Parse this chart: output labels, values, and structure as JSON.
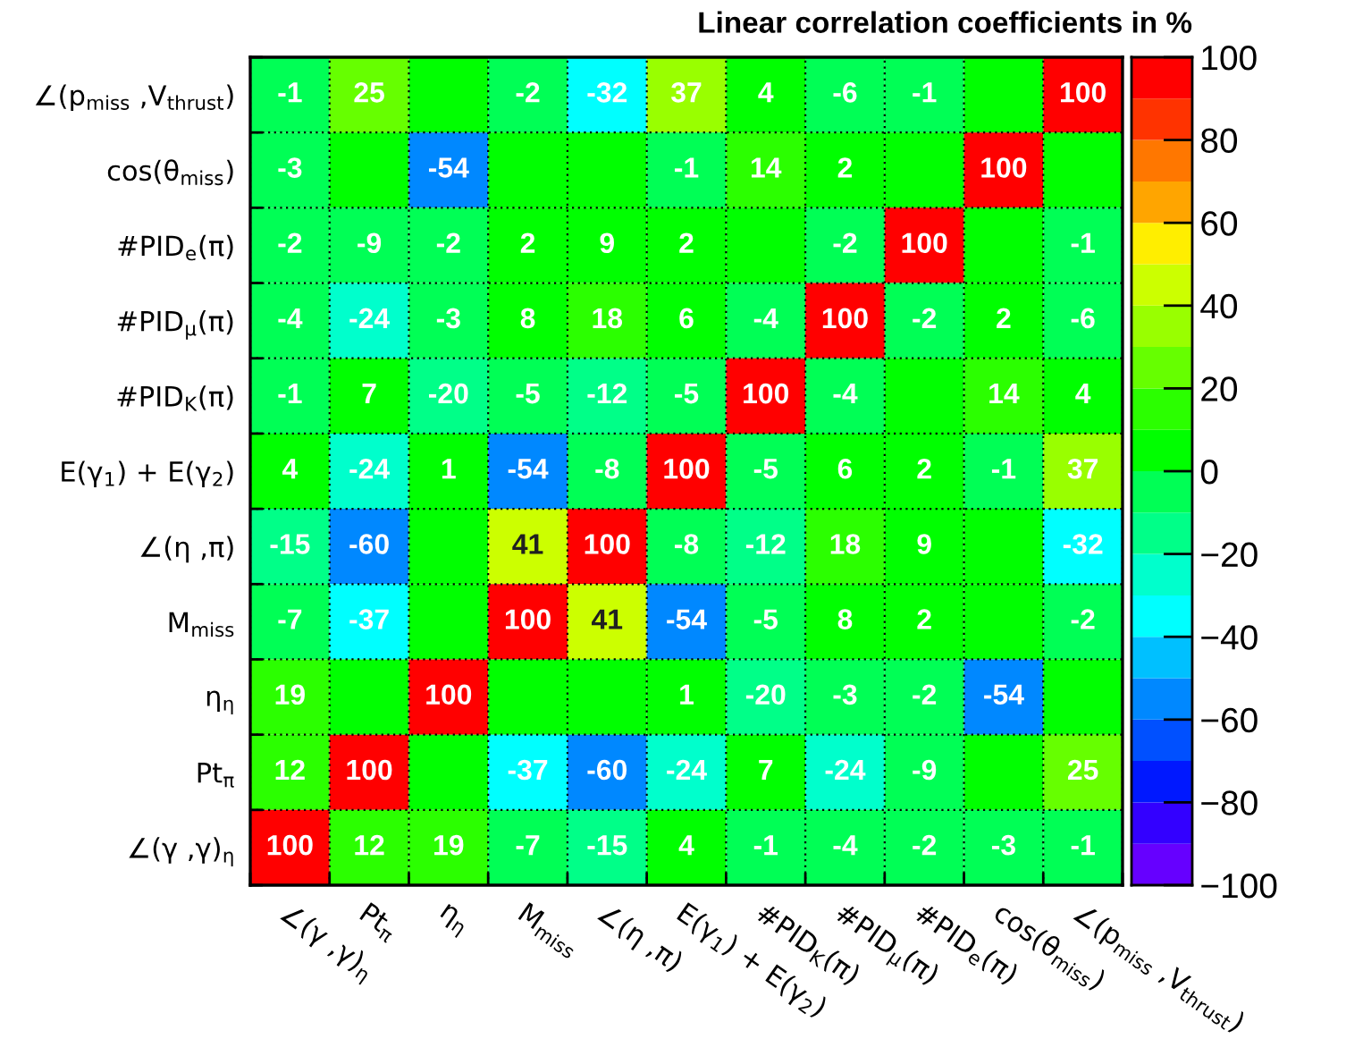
{
  "chart_data": {
    "type": "heatmap",
    "title": "Linear correlation coefficients in %",
    "categories": [
      "∠(γ ,γ)$_{η}$",
      "Pt$_{π}$",
      "η$_{η}$",
      "M$_{miss}$",
      "∠(η ,π)",
      "E(γ$_{1}$) + E(γ$_{2}$)",
      "#PID$_{K}$(π)",
      "#PID$_{μ}$(π)",
      "#PID$_{e}$(π)",
      "cos(θ$_{miss}$)",
      "∠(p$_{miss}$ ,V$_{thrust}$)"
    ],
    "y_categories": [
      "∠(p$_{miss}$ ,V$_{thrust}$)",
      "cos(θ$_{miss}$)",
      "#PID$_{e}$(π)",
      "#PID$_{μ}$(π)",
      "#PID$_{K}$(π)",
      "E(γ$_{1}$) + E(γ$_{2}$)",
      "∠(η ,π)",
      "M$_{miss}$",
      "η$_{η}$",
      "Pt$_{π}$",
      "∠(γ ,γ)$_{η}$"
    ],
    "cells": [
      [
        -1,
        25,
        0,
        -2,
        -32,
        37,
        4,
        -6,
        -1,
        0,
        100
      ],
      [
        -3,
        0,
        -54,
        0,
        0,
        -1,
        14,
        2,
        0,
        100,
        0
      ],
      [
        -2,
        -9,
        -2,
        2,
        9,
        2,
        0,
        -2,
        100,
        0,
        -1
      ],
      [
        -4,
        -24,
        -3,
        8,
        18,
        6,
        -4,
        100,
        -2,
        2,
        -6
      ],
      [
        -1,
        7,
        -20,
        -5,
        -12,
        -5,
        100,
        -4,
        0,
        14,
        4
      ],
      [
        4,
        -24,
        1,
        -54,
        -8,
        100,
        -5,
        6,
        2,
        -1,
        37
      ],
      [
        -15,
        -60,
        0,
        41,
        100,
        -8,
        -12,
        18,
        9,
        0,
        -32
      ],
      [
        -7,
        -37,
        0,
        100,
        41,
        -54,
        -5,
        8,
        2,
        0,
        -2
      ],
      [
        19,
        0,
        100,
        0,
        0,
        1,
        -20,
        -3,
        -2,
        -54,
        0
      ],
      [
        12,
        100,
        0,
        -37,
        -60,
        -24,
        7,
        -24,
        -9,
        0,
        25
      ],
      [
        100,
        12,
        19,
        -7,
        -15,
        4,
        -1,
        -4,
        -2,
        -3,
        -1
      ]
    ],
    "cell_labels": [
      [
        "-1",
        "25",
        null,
        "-2",
        "-32",
        "37",
        "4",
        "-6",
        "-1",
        null,
        "100"
      ],
      [
        "-3",
        null,
        "-54",
        null,
        null,
        "-1",
        "14",
        "2",
        null,
        "100",
        null
      ],
      [
        "-2",
        "-9",
        "-2",
        "2",
        "9",
        "2",
        null,
        "-2",
        "100",
        null,
        "-1"
      ],
      [
        "-4",
        "-24",
        "-3",
        "8",
        "18",
        "6",
        "-4",
        "100",
        "-2",
        "2",
        "-6"
      ],
      [
        "-1",
        "7",
        "-20",
        "-5",
        "-12",
        "-5",
        "100",
        "-4",
        null,
        "14",
        "4"
      ],
      [
        "4",
        "-24",
        "1",
        "-54",
        "-8",
        "100",
        "-5",
        "6",
        "2",
        "-1",
        "37"
      ],
      [
        "-15",
        "-60",
        null,
        "41",
        "100",
        "-8",
        "-12",
        "18",
        "9",
        null,
        "-32"
      ],
      [
        "-7",
        "-37",
        null,
        "100",
        "41",
        "-54",
        "-5",
        "8",
        "2",
        null,
        "-2"
      ],
      [
        "19",
        null,
        "100",
        null,
        null,
        "1",
        "-20",
        "-3",
        "-2",
        "-54",
        null
      ],
      [
        "12",
        "100",
        null,
        "-37",
        "-60",
        "-24",
        "7",
        "-24",
        "-9",
        null,
        "25"
      ],
      [
        "100",
        "12",
        "19",
        "-7",
        "-15",
        "4",
        "-1",
        "-4",
        "-2",
        "-3",
        "-1"
      ]
    ],
    "clim": [
      -100,
      100
    ],
    "cticks": [
      {
        "value": -100,
        "label": "−100"
      },
      {
        "value": -80,
        "label": "−80"
      },
      {
        "value": -60,
        "label": "−60"
      },
      {
        "value": -40,
        "label": "−40"
      },
      {
        "value": -20,
        "label": "−20"
      },
      0,
      20,
      40,
      60,
      80,
      100
    ],
    "colors": [
      "#6600ff",
      "#3300ff",
      "#0018ff",
      "#0050ff",
      "#0088ff",
      "#00c0ff",
      "#00ffff",
      "#00ffcc",
      "#00ff88",
      "#00ff55",
      "#00ff00",
      "#2bff00",
      "#66ff00",
      "#99ff00",
      "#ccff00",
      "#ffee00",
      "#ffa500",
      "#ff7700",
      "#ff3300",
      "#ff0000"
    ],
    "grid": true
  }
}
